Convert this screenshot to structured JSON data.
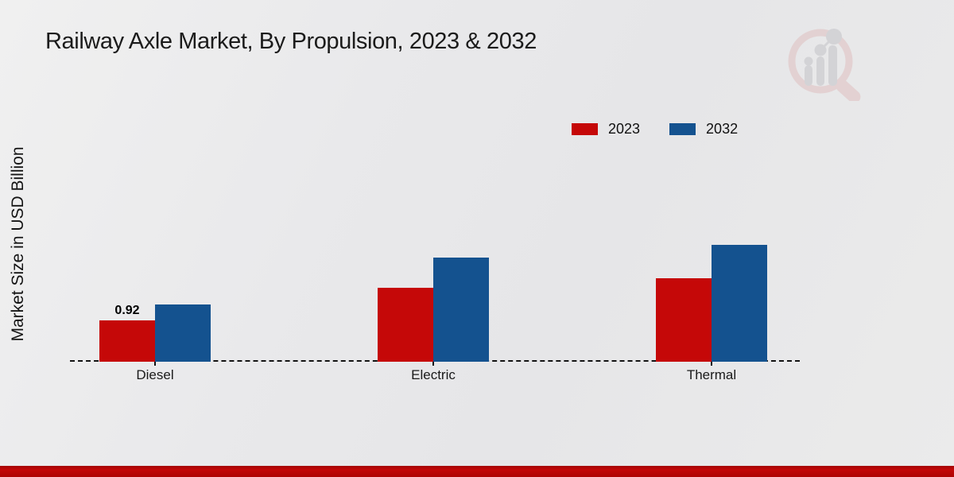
{
  "page": {
    "title": "Railway Axle Market, By Propulsion, 2023 & 2032"
  },
  "chart_data": {
    "type": "bar",
    "title": "Railway Axle Market, By Propulsion, 2023 & 2032",
    "ylabel": "Market Size in USD Billion",
    "xlabel": "",
    "units": "USD Billion",
    "categories": [
      "Diesel",
      "Electric",
      "Thermal"
    ],
    "series": [
      {
        "name": "2023",
        "color": "#c50808",
        "values": [
          0.92,
          1.66,
          1.87
        ]
      },
      {
        "name": "2032",
        "color": "#14528f",
        "values": [
          1.27,
          2.33,
          2.61
        ]
      }
    ],
    "value_labels": [
      [
        "0.92",
        "",
        ""
      ],
      [
        "",
        "",
        ""
      ]
    ],
    "ylim": [
      0,
      3
    ],
    "grid": false,
    "legend_position": "top-right",
    "baseline_style": "dashed"
  },
  "branding": {
    "watermark_icon": "magnifier-bar-chart-logo",
    "footer_bar_color": "#c30707",
    "watermark_ring_color": "#dfc0c0",
    "watermark_bar_color": "#c3c3c8"
  }
}
